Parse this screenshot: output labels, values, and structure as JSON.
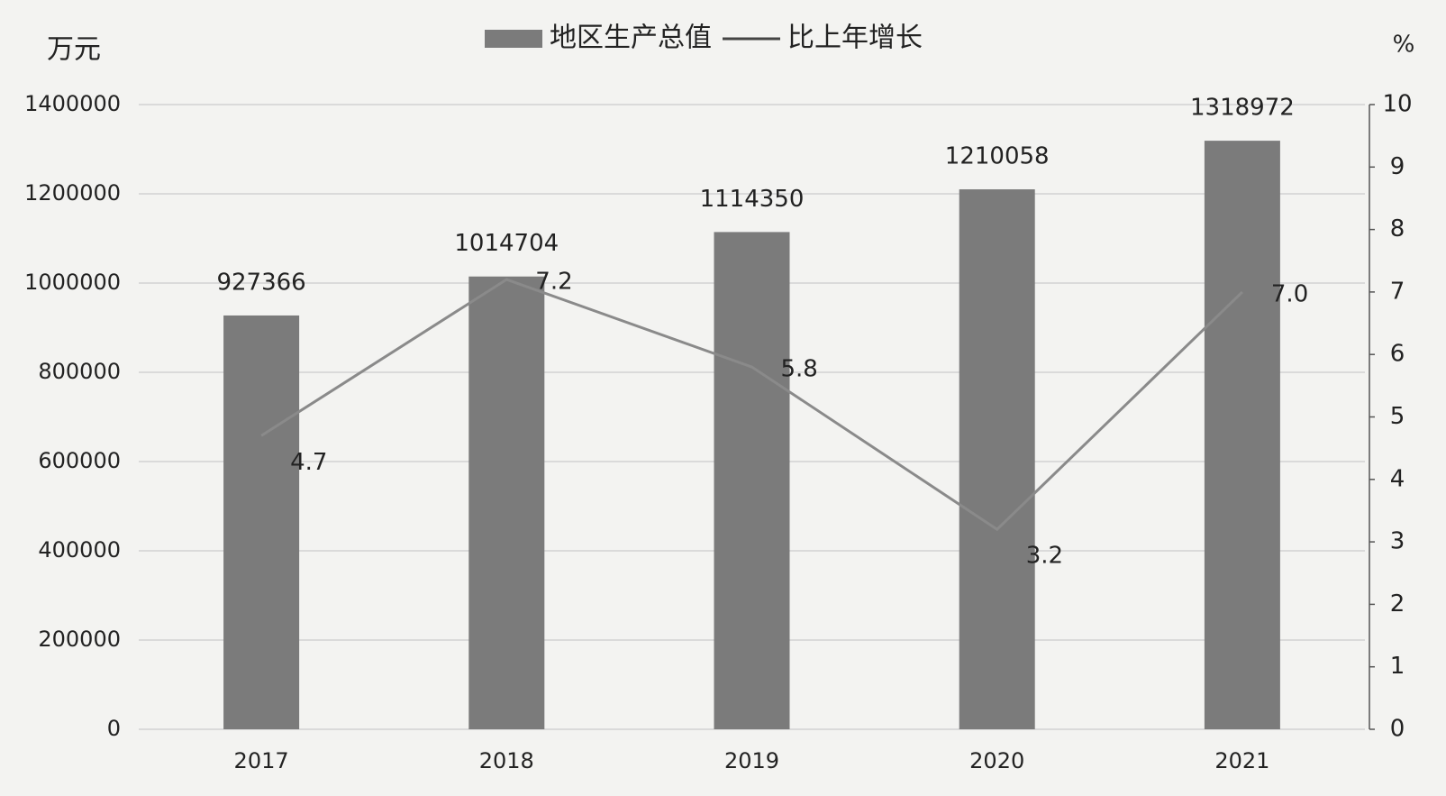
{
  "chart_data": {
    "type": "bar",
    "y_label": "万元",
    "y2_label": "%",
    "categories": [
      "2017",
      "2018",
      "2019",
      "2020",
      "2021"
    ],
    "series": [
      {
        "name": "地区生产总值",
        "type": "bar",
        "color": "#7b7b7b",
        "values": [
          927366,
          1014704,
          1114350,
          1210058,
          1318972
        ]
      },
      {
        "name": "比上年增长",
        "type": "line",
        "axis": "y2",
        "color": "#8a8a8a",
        "values": [
          4.7,
          7.2,
          5.8,
          3.2,
          7.0
        ],
        "value_labels": [
          "4.7",
          "7.2",
          "5.8",
          "3.2",
          "7.0"
        ]
      }
    ],
    "ylim": [
      0,
      1400000
    ],
    "yticks": [
      0,
      200000,
      400000,
      600000,
      800000,
      1000000,
      1200000,
      1400000
    ],
    "y2lim": [
      0,
      10
    ],
    "y2ticks": [
      0,
      1,
      2,
      3,
      4,
      5,
      6,
      7,
      8,
      9,
      10
    ],
    "grid": true,
    "legend": "top"
  }
}
